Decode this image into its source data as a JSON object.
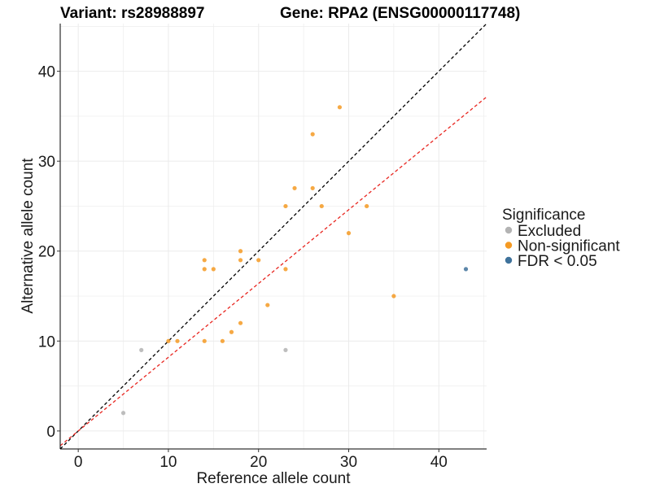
{
  "chart_data": {
    "type": "scatter",
    "title_left": "Variant: rs28988897",
    "title_right": "Gene: RPA2 (ENSG00000117748)",
    "xlabel": "Reference allele count",
    "ylabel": "Alternative allele count",
    "xlim": [
      -2,
      45.3
    ],
    "ylim": [
      -2,
      45.3
    ],
    "xticks": [
      0,
      10,
      20,
      30,
      40
    ],
    "yticks": [
      0,
      10,
      20,
      30,
      40
    ],
    "grid": true,
    "legend": {
      "title": "Significance",
      "position": "right",
      "entries": [
        {
          "label": "Excluded",
          "color": "#b3b3b3"
        },
        {
          "label": "Non-significant",
          "color": "#f59a23"
        },
        {
          "label": "FDR < 0.05",
          "color": "#3f729b"
        }
      ]
    },
    "reference_lines": [
      {
        "name": "identity",
        "slope": 1.0,
        "intercept": 0,
        "color": "#000000",
        "dash": true
      },
      {
        "name": "expected ratio",
        "slope": 0.82,
        "intercept": 0,
        "color": "#e8251f",
        "dash": true
      }
    ],
    "series": [
      {
        "name": "Excluded",
        "color": "#b3b3b3",
        "points": [
          [
            5,
            2
          ],
          [
            7,
            9
          ],
          [
            23,
            9
          ]
        ]
      },
      {
        "name": "Non-significant",
        "color": "#f59a23",
        "points": [
          [
            10,
            10
          ],
          [
            11,
            10
          ],
          [
            14,
            10
          ],
          [
            16,
            10
          ],
          [
            17,
            11
          ],
          [
            18,
            12
          ],
          [
            21,
            14
          ],
          [
            14,
            18
          ],
          [
            15,
            18
          ],
          [
            14,
            19
          ],
          [
            18,
            19
          ],
          [
            18,
            20
          ],
          [
            20,
            19
          ],
          [
            23,
            18
          ],
          [
            23,
            25
          ],
          [
            24,
            27
          ],
          [
            26,
            27
          ],
          [
            26,
            33
          ],
          [
            27,
            25
          ],
          [
            29,
            36
          ],
          [
            30,
            22
          ],
          [
            32,
            25
          ],
          [
            35,
            15
          ]
        ]
      },
      {
        "name": "FDR < 0.05",
        "color": "#3f729b",
        "points": [
          [
            43,
            18
          ]
        ]
      }
    ]
  }
}
